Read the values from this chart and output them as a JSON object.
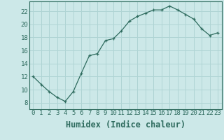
{
  "x": [
    0,
    1,
    2,
    3,
    4,
    5,
    6,
    7,
    8,
    9,
    10,
    11,
    12,
    13,
    14,
    15,
    16,
    17,
    18,
    19,
    20,
    21,
    22,
    23
  ],
  "y": [
    12.0,
    10.8,
    9.7,
    8.8,
    8.2,
    9.7,
    12.5,
    15.2,
    15.5,
    17.5,
    17.8,
    19.0,
    20.5,
    21.2,
    21.7,
    22.2,
    22.2,
    22.8,
    22.2,
    21.5,
    20.8,
    19.3,
    18.3,
    18.7
  ],
  "xlabel": "Humidex (Indice chaleur)",
  "xlim": [
    -0.5,
    23.5
  ],
  "ylim": [
    7,
    23.5
  ],
  "yticks": [
    8,
    10,
    12,
    14,
    16,
    18,
    20,
    22
  ],
  "xticks": [
    0,
    1,
    2,
    3,
    4,
    5,
    6,
    7,
    8,
    9,
    10,
    11,
    12,
    13,
    14,
    15,
    16,
    17,
    18,
    19,
    20,
    21,
    22,
    23
  ],
  "line_color": "#2e6b5e",
  "marker": "+",
  "bg_color": "#cce8e8",
  "grid_color": "#afd4d4",
  "tick_label_fontsize": 6.5,
  "xlabel_fontsize": 8.5
}
